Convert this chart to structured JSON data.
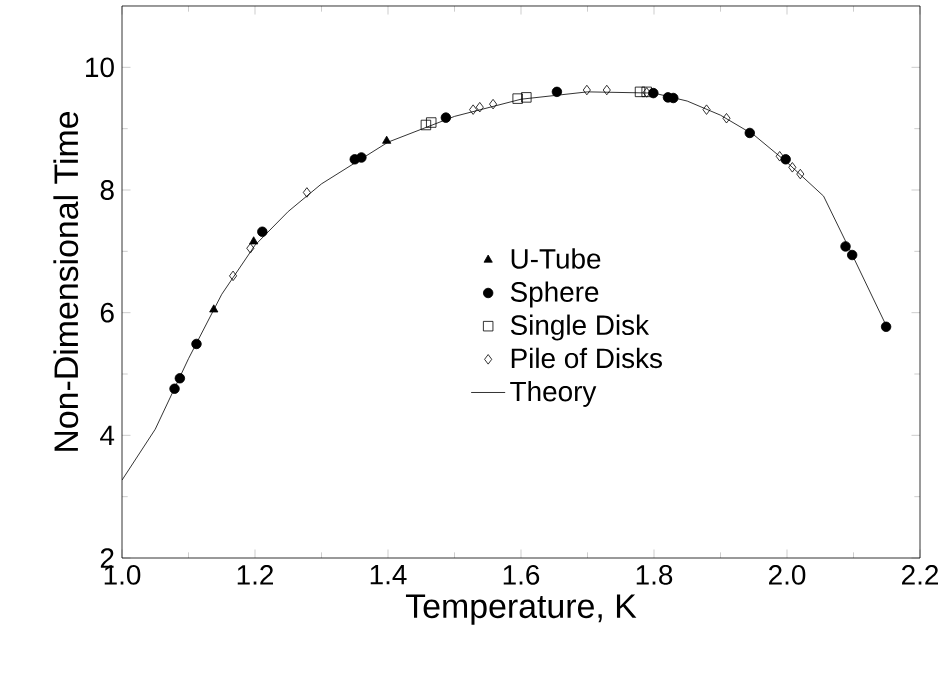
{
  "chart_data": {
    "type": "scatter",
    "xlabel": "Temperature, K",
    "ylabel": "Non-Dimensional Time",
    "xlim": [
      1.0,
      2.2
    ],
    "ylim": [
      2,
      11
    ],
    "xticks": [
      {
        "value": 1.0,
        "label": "1.0"
      },
      {
        "value": 1.2,
        "label": "1.2"
      },
      {
        "value": 1.4,
        "label": "1.4"
      },
      {
        "value": 1.6,
        "label": "1.6"
      },
      {
        "value": 1.8,
        "label": "1.8"
      },
      {
        "value": 2.0,
        "label": "2.0"
      },
      {
        "value": 2.2,
        "label": "2.2"
      }
    ],
    "yticks": [
      2,
      4,
      6,
      8,
      10
    ],
    "grid": false,
    "legend": "center",
    "series": [
      {
        "name": "U-Tube",
        "color": "#000000",
        "marker": "triangle",
        "x": [
          1.138,
          1.198,
          1.398
        ],
        "values": [
          6.05,
          7.16,
          8.8
        ]
      },
      {
        "name": "Sphere",
        "color": "#000000",
        "marker": "circle",
        "x": [
          1.079,
          1.087,
          1.112,
          1.211,
          1.35,
          1.36,
          1.487,
          1.654,
          1.799,
          1.821,
          1.829,
          1.944,
          1.998,
          2.088,
          2.098,
          2.149
        ],
        "values": [
          4.76,
          4.93,
          5.49,
          7.32,
          8.5,
          8.53,
          9.18,
          9.6,
          9.58,
          9.51,
          9.5,
          8.93,
          8.5,
          7.08,
          6.94,
          5.77
        ]
      },
      {
        "name": "Single Disk",
        "color": "#000000",
        "marker": "square",
        "x": [
          1.457,
          1.465,
          1.595,
          1.608,
          1.779,
          1.789
        ],
        "values": [
          9.06,
          9.1,
          9.49,
          9.51,
          9.6,
          9.6
        ]
      },
      {
        "name": "Pile of Disks",
        "color": "#000000",
        "marker": "diamond",
        "x": [
          1.167,
          1.193,
          1.278,
          1.528,
          1.538,
          1.558,
          1.699,
          1.729,
          1.789,
          1.879,
          1.909,
          1.989,
          2.008,
          2.02
        ],
        "values": [
          6.6,
          7.05,
          7.96,
          9.31,
          9.35,
          9.4,
          9.63,
          9.63,
          9.59,
          9.31,
          9.17,
          8.55,
          8.37,
          8.26
        ]
      },
      {
        "name": "Theory",
        "type": "line",
        "color": "#000000",
        "marker": "none",
        "line_style": "solid",
        "x": [
          1.0,
          1.05,
          1.1,
          1.15,
          1.2,
          1.25,
          1.3,
          1.4,
          1.5,
          1.6,
          1.7,
          1.8,
          1.85,
          1.9,
          1.95,
          2.0,
          2.055,
          2.1,
          2.15
        ],
        "values": [
          3.27,
          4.1,
          5.25,
          6.3,
          7.1,
          7.65,
          8.1,
          8.78,
          9.2,
          9.48,
          9.6,
          9.58,
          9.45,
          9.22,
          8.9,
          8.45,
          7.9,
          6.9,
          5.77
        ]
      }
    ]
  }
}
